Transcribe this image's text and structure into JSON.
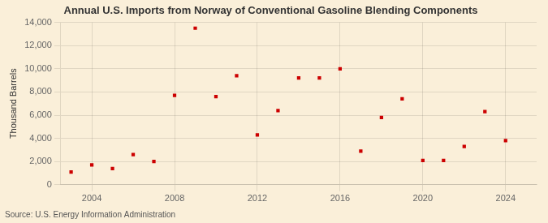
{
  "chart_data": {
    "type": "scatter",
    "title": "Annual U.S. Imports from Norway of Conventional Gasoline Blending Components",
    "ylabel": "Thousand Barrels",
    "source": "Source: U.S. Energy Information Administration",
    "background_color": "#faefd9",
    "color": "#cc0000",
    "marker": "square",
    "x": [
      2003,
      2004,
      2005,
      2006,
      2007,
      2008,
      2009,
      2010,
      2011,
      2012,
      2013,
      2014,
      2015,
      2016,
      2017,
      2018,
      2019,
      2020,
      2021,
      2022,
      2023,
      2024
    ],
    "values": [
      1100,
      1700,
      1400,
      2600,
      2000,
      7700,
      13500,
      7600,
      9400,
      4300,
      6400,
      9200,
      9200,
      10000,
      2900,
      5800,
      7400,
      2100,
      2100,
      3300,
      6300,
      3800
    ],
    "xlim": [
      2002.5,
      2025.5
    ],
    "xticks": [
      2004,
      2008,
      2012,
      2016,
      2020,
      2024
    ],
    "ylim": [
      0,
      14000
    ],
    "yticks": [
      0,
      {
        "value": 2000,
        "label": "2,000"
      },
      {
        "value": 4000,
        "label": "4,000"
      },
      {
        "value": 6000,
        "label": "6,000"
      },
      {
        "value": 8000,
        "label": "8,000"
      },
      {
        "value": 10000,
        "label": "10,000"
      },
      {
        "value": 12000,
        "label": "12,000"
      },
      {
        "value": 14000,
        "label": "14,000"
      }
    ],
    "grid": true
  }
}
